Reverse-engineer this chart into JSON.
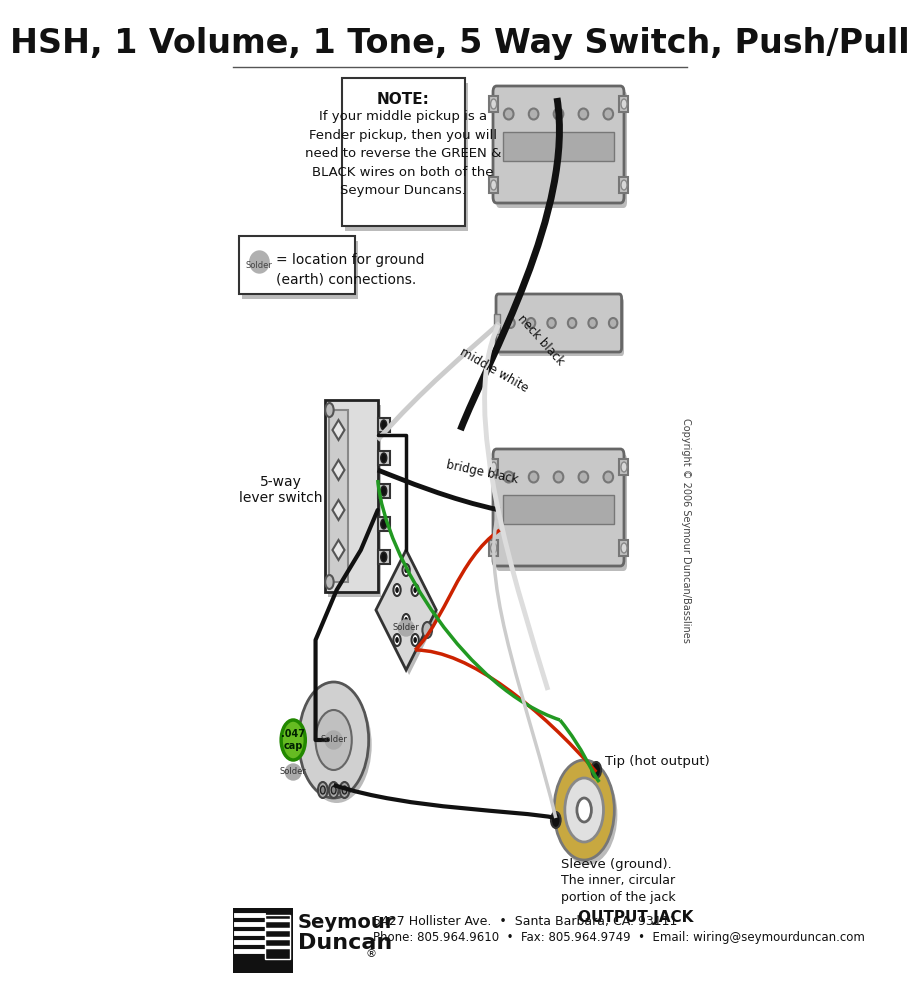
{
  "title": "HSH, 1 Volume, 1 Tone, 5 Way Switch, Push/Pull",
  "bg_color": "#ffffff",
  "title_color": "#111111",
  "title_fontsize": 24,
  "note_title": "NOTE:",
  "note_body": "If your middle pickup is a\nFender pickup, then you will\nneed to reverse the GREEN &\nBLACK wires on both of the\nSeymour Duncans.",
  "solder_legend_text": "= location for ground\n(earth) connections.",
  "label_5way": "5-way\nlever switch",
  "label_neck_black": "neck black",
  "label_middle_white": "middle white",
  "label_bridge_black": "bridge black",
  "label_tip": "Tip (hot output)",
  "label_sleeve_title": "Sleeve (ground).",
  "label_sleeve_body": "The inner, circular\nportion of the jack",
  "label_output_jack": "OUTPUT JACK",
  "footer1": "5427 Hollister Ave.  •  Santa Barbara, CA. 93111",
  "footer2": "Phone: 805.964.9610  •  Fax: 805.964.9749  •  Email: wiring@seymourduncan.com",
  "copyright": "Copyright © 2006 Seymour Duncan/Basslines",
  "c_black": "#111111",
  "c_red": "#cc2200",
  "c_green": "#229922",
  "c_white_wire": "#cccccc",
  "c_pickup": "#c8c8c8",
  "c_pickup_dark": "#888888",
  "c_switch": "#cccccc",
  "c_gold": "#c8a840",
  "c_solder": "#aaaaaa",
  "c_shadow": "#bbbbbb"
}
